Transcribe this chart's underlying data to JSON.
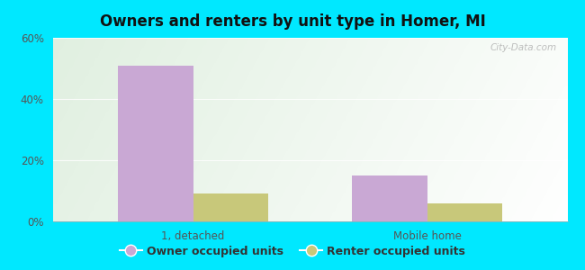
{
  "title": "Owners and renters by unit type in Homer, MI",
  "categories": [
    "1, detached",
    "Mobile home"
  ],
  "owner_values": [
    51,
    15
  ],
  "renter_values": [
    9,
    6
  ],
  "owner_color": "#c9a8d4",
  "renter_color": "#c8c87a",
  "ylim": [
    0,
    60
  ],
  "yticks": [
    0,
    20,
    40,
    60
  ],
  "ytick_labels": [
    "0%",
    "20%",
    "40%",
    "60%"
  ],
  "bar_width": 0.32,
  "background_outer": "#00e8ff",
  "watermark": "City-Data.com",
  "legend_owner": "Owner occupied units",
  "legend_renter": "Renter occupied units",
  "bg_colors": [
    "#d4ecd0",
    "#eaf8f0",
    "#e8f8f5",
    "#f0faf8"
  ],
  "grid_color": "#d0e8d0"
}
